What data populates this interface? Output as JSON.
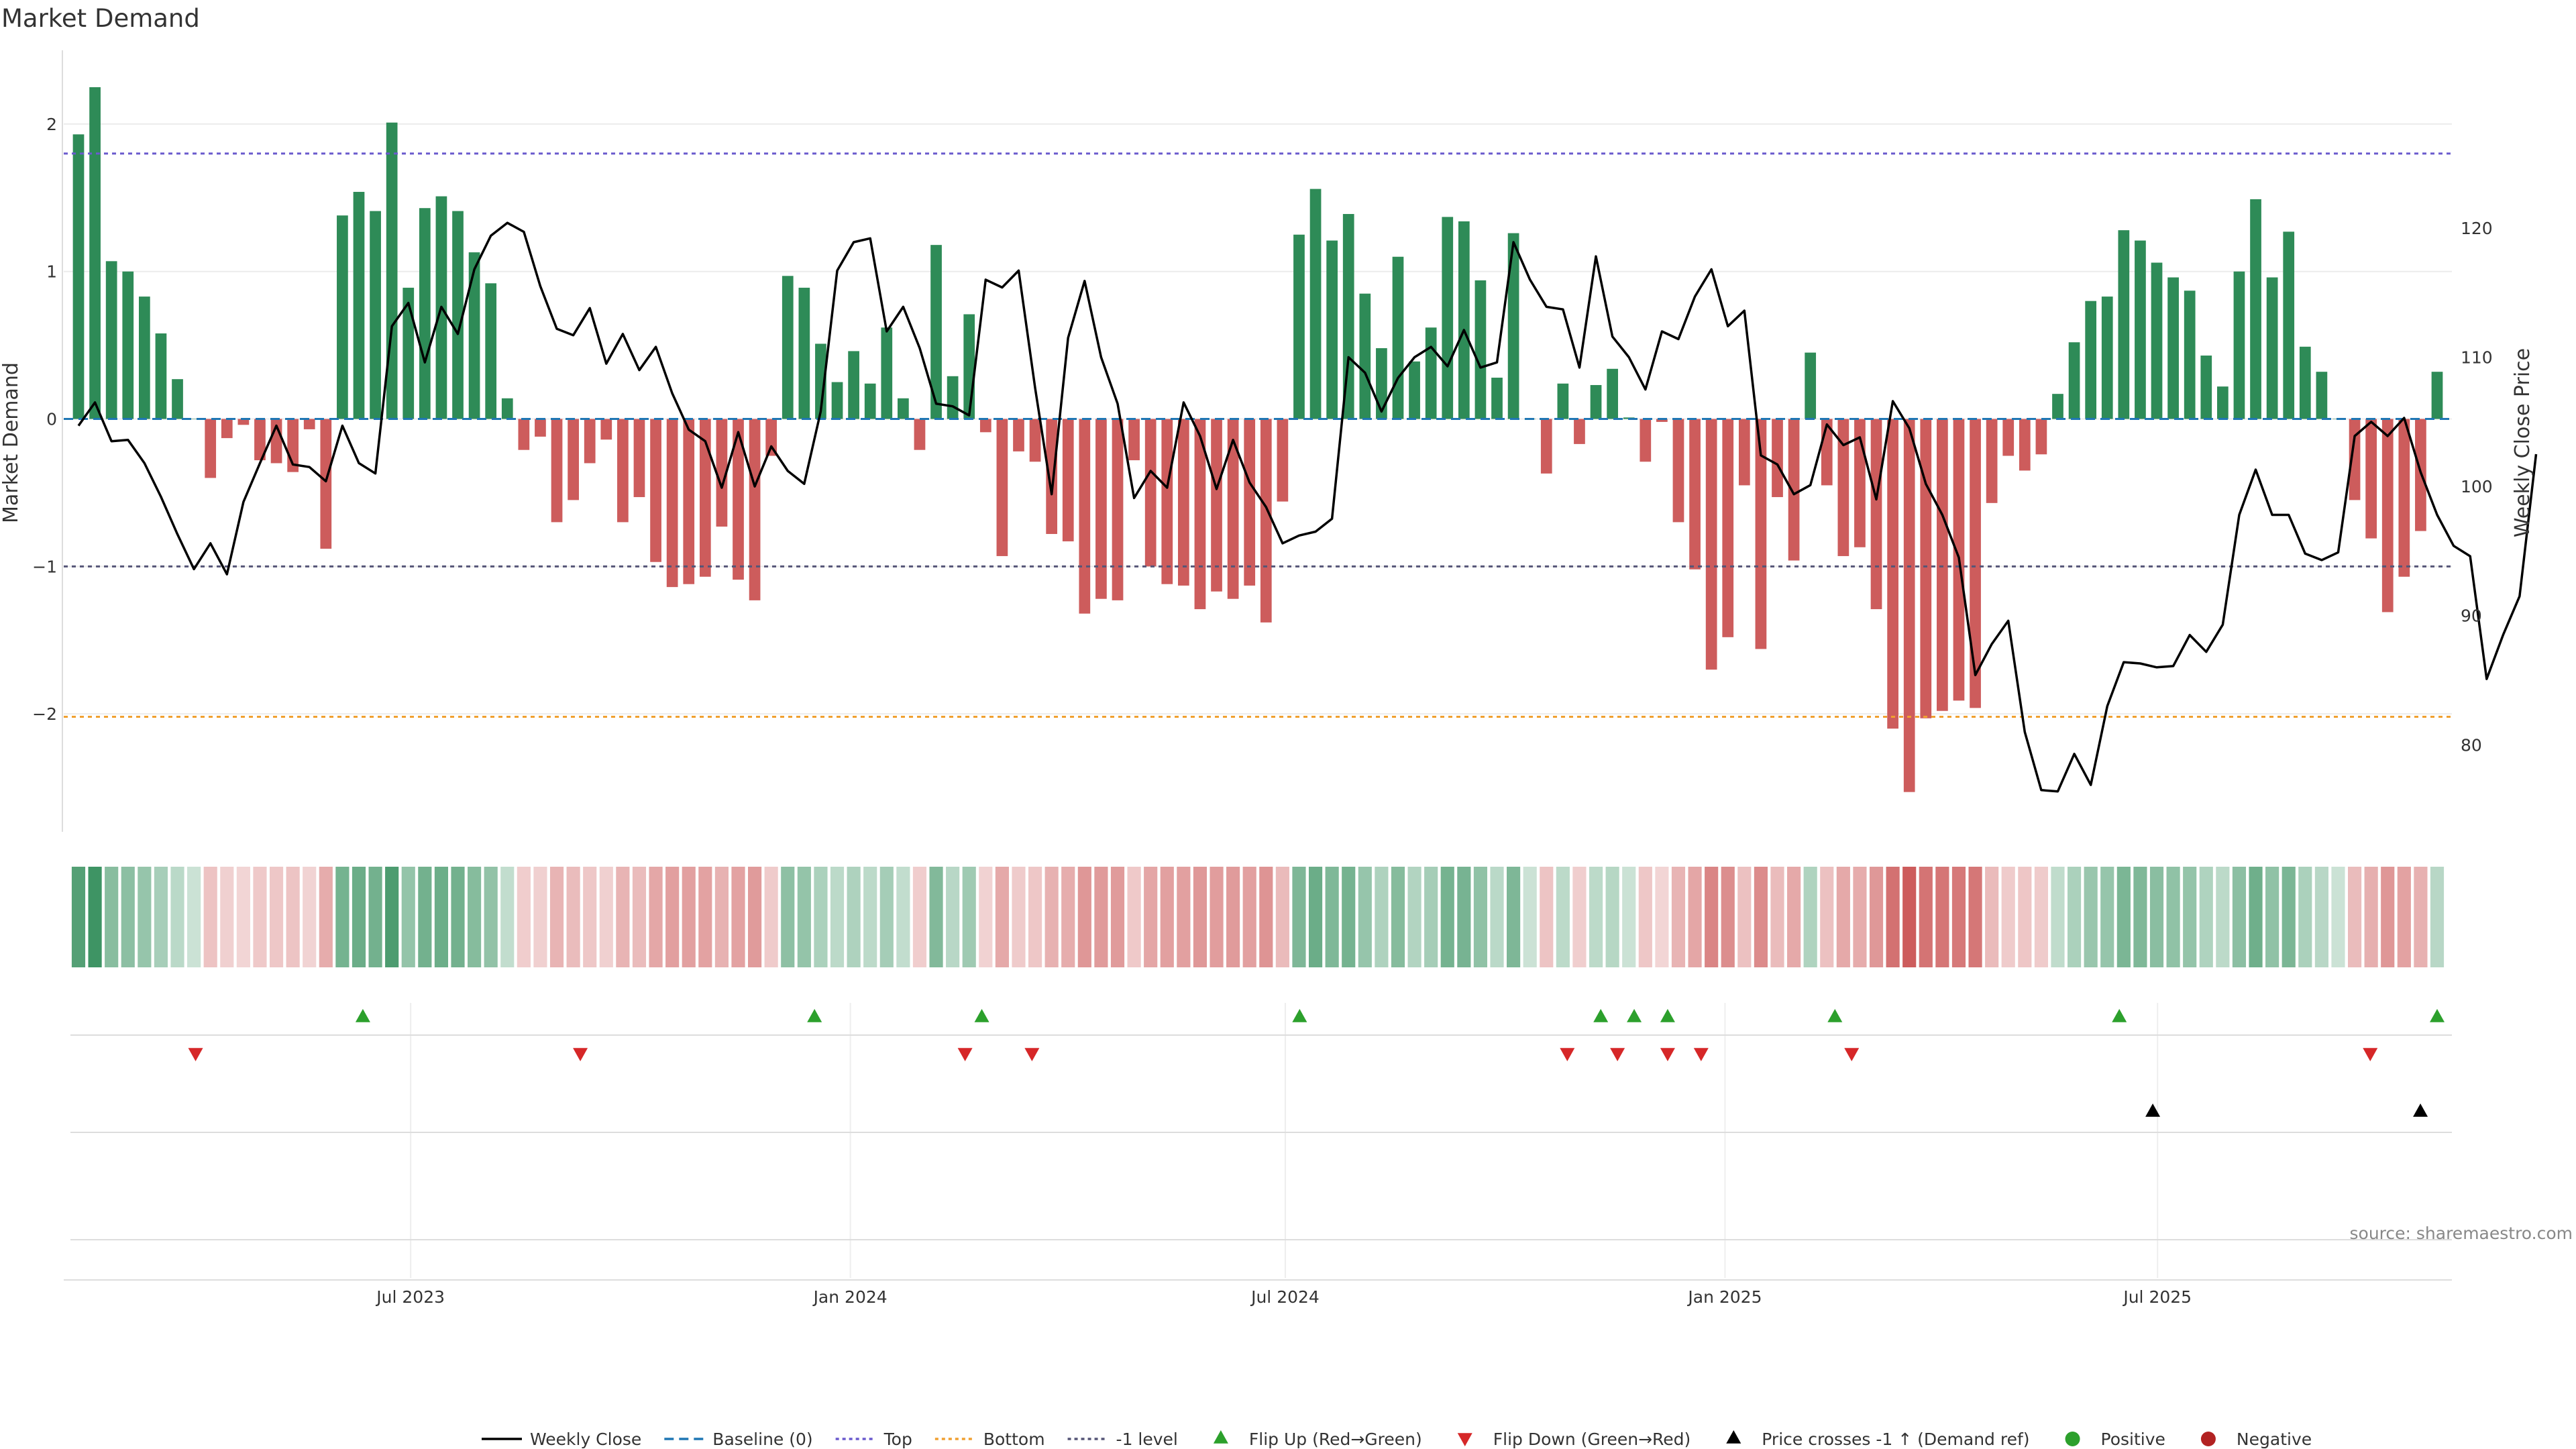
{
  "chart_data": {
    "type": "bar",
    "title": "Market Demand",
    "ylabel_left": "Market Demand",
    "ylabel_right": "Weekly Close Price",
    "source": "source: sharemaestro.com",
    "ylim_left": [
      -2.8,
      2.5
    ],
    "yticks_left": [
      -2,
      -1,
      0,
      1,
      2
    ],
    "ytick_labels_left": [
      "−2",
      "−1",
      "0",
      "1",
      "2"
    ],
    "ylim_right": [
      73.27,
      133.75
    ],
    "yticks_right": [
      80,
      90,
      100,
      110,
      120
    ],
    "ytick_labels_right": [
      "80",
      "90",
      "100",
      "110",
      "120"
    ],
    "x_start": "2023-02-12",
    "x_end": "2025-10-26",
    "xticks": [
      "2023-07-01",
      "2024-01-01",
      "2024-07-01",
      "2025-01-01",
      "2025-07-01"
    ],
    "xtick_labels": [
      "Jul 2023",
      "Jan 2024",
      "Jul 2024",
      "Jan 2025",
      "Jul 2025"
    ],
    "reference_lines": [
      {
        "name": "Top",
        "value": 1.8,
        "color": "#6a5acd"
      },
      {
        "name": "Bottom",
        "value": -2.02,
        "color": "#f0a030"
      },
      {
        "name": "-1 level",
        "value": -1.0,
        "color": "#555577"
      }
    ],
    "colors": {
      "positive": "#2e8b57",
      "negative": "#cd5c5c",
      "price": "#000000",
      "flip_up": "#2ca02c",
      "flip_down": "#d62728"
    },
    "series": [
      {
        "name": "Market Demand",
        "values": [
          1.93,
          2.25,
          1.07,
          1.0,
          0.83,
          0.58,
          0.27,
          0.0,
          -0.4,
          -0.13,
          -0.04,
          -0.28,
          -0.3,
          -0.36,
          -0.07,
          -0.88,
          1.38,
          1.54,
          1.41,
          2.01,
          0.89,
          1.43,
          1.51,
          1.41,
          1.13,
          0.92,
          0.14,
          -0.21,
          -0.12,
          -0.7,
          -0.55,
          -0.3,
          -0.14,
          -0.7,
          -0.53,
          -0.97,
          -1.14,
          -1.12,
          -1.07,
          -0.73,
          -1.09,
          -1.23,
          -0.25,
          0.97,
          0.89,
          0.51,
          0.25,
          0.46,
          0.24,
          0.62,
          0.14,
          -0.21,
          1.18,
          0.29,
          0.71,
          -0.09,
          -0.93,
          -0.22,
          -0.29,
          -0.78,
          -0.83,
          -1.32,
          -1.22,
          -1.23,
          -0.28,
          -1.0,
          -1.12,
          -1.13,
          -1.29,
          -1.17,
          -1.22,
          -1.13,
          -1.38,
          -0.56,
          1.25,
          1.56,
          1.21,
          1.39,
          0.85,
          0.48,
          1.1,
          0.39,
          0.62,
          1.37,
          1.34,
          0.94,
          0.28,
          1.26,
          0.0,
          -0.37,
          0.24,
          -0.17,
          0.23,
          0.34,
          0.01,
          -0.29,
          -0.02,
          -0.7,
          -1.02,
          -1.7,
          -1.48,
          -0.45,
          -1.56,
          -0.53,
          -0.96,
          0.45,
          -0.45,
          -0.93,
          -0.87,
          -1.29,
          -2.1,
          -2.53,
          -2.03,
          -1.98,
          -1.91,
          -1.96,
          -0.57,
          -0.25,
          -0.35,
          -0.24,
          0.17,
          0.52,
          0.8,
          0.83,
          1.28,
          1.21,
          1.06,
          0.96,
          0.87,
          0.43,
          0.22,
          1.0,
          1.49,
          0.96,
          1.27,
          0.49,
          0.32,
          0.0,
          -0.55,
          -0.81,
          -1.31,
          -1.07,
          -0.76,
          0.32
        ]
      },
      {
        "name": "Weekly Close",
        "values": [
          104.7,
          106.5,
          103.5,
          103.6,
          101.8,
          99.2,
          96.3,
          93.6,
          95.6,
          93.2,
          98.8,
          101.8,
          104.7,
          101.7,
          101.5,
          100.4,
          104.7,
          101.8,
          101.0,
          112.4,
          114.2,
          109.6,
          113.9,
          111.8,
          116.8,
          119.4,
          120.4,
          119.7,
          115.5,
          112.2,
          111.7,
          113.8,
          109.5,
          111.8,
          109.0,
          110.8,
          107.2,
          104.4,
          103.5,
          99.9,
          104.2,
          100.0,
          103.1,
          101.2,
          100.2,
          105.8,
          116.7,
          118.9,
          119.2,
          112.0,
          113.9,
          110.7,
          106.4,
          106.2,
          105.5,
          116.0,
          115.4,
          116.7,
          107.6,
          99.4,
          111.5,
          115.9,
          110.0,
          106.4,
          99.1,
          101.2,
          99.9,
          106.5,
          103.9,
          99.8,
          103.6,
          100.3,
          98.4,
          95.6,
          96.2,
          96.5,
          97.5,
          110.0,
          108.8,
          105.8,
          108.4,
          110.0,
          110.8,
          109.3,
          112.1,
          109.2,
          109.6,
          118.9,
          116.0,
          113.9,
          113.7,
          109.2,
          117.8,
          111.6,
          110.0,
          107.5,
          112.0,
          111.4,
          114.7,
          116.8,
          112.4,
          113.6,
          102.4,
          101.7,
          99.4,
          100.1,
          104.8,
          103.2,
          103.8,
          99.0,
          106.6,
          104.5,
          100.2,
          97.8,
          94.5,
          85.4,
          87.8,
          89.6,
          81.0,
          76.5,
          76.4,
          79.3,
          76.9,
          83.0,
          86.4,
          86.3,
          86.0,
          86.1,
          88.5,
          87.2,
          89.3,
          97.8,
          101.3,
          97.8,
          97.8,
          94.8,
          94.3,
          94.9,
          103.9,
          105.0,
          103.9,
          105.3,
          101.1,
          97.8,
          95.4,
          94.6,
          85.1,
          88.5,
          91.5,
          102.5
        ]
      }
    ],
    "markers": {
      "flip_up": [
        "2023-06-11",
        "2023-12-17",
        "2024-02-25",
        "2024-07-07",
        "2024-11-10",
        "2024-11-24",
        "2024-12-08",
        "2025-02-16",
        "2025-06-15",
        "2025-10-26"
      ],
      "flip_down": [
        "2023-04-02",
        "2023-09-10",
        "2024-02-18",
        "2024-03-17",
        "2024-10-27",
        "2024-11-17",
        "2024-12-08",
        "2024-12-22",
        "2025-02-23",
        "2025-09-28"
      ],
      "price_cross": [
        "2025-06-29",
        "2025-10-19"
      ]
    },
    "legend": {
      "position": "bottom",
      "items": [
        {
          "label": "Weekly Close",
          "kind": "line",
          "color": "#000000"
        },
        {
          "label": "Baseline (0)",
          "kind": "dash",
          "color": "#1f77b4"
        },
        {
          "label": "Top",
          "kind": "dot",
          "color": "#6a5acd"
        },
        {
          "label": "Bottom",
          "kind": "dot",
          "color": "#f0a030"
        },
        {
          "label": "-1 level",
          "kind": "dot",
          "color": "#555577"
        },
        {
          "label": "Flip Up (Red→Green)",
          "kind": "tri-up",
          "color": "#2ca02c"
        },
        {
          "label": "Flip Down (Green→Red)",
          "kind": "tri-down",
          "color": "#d62728"
        },
        {
          "label": "Price crosses -1 ↑ (Demand ref)",
          "kind": "tri-up",
          "color": "#000000"
        },
        {
          "label": "Positive",
          "kind": "circle",
          "color": "#2ca02c"
        },
        {
          "label": "Negative",
          "kind": "circle",
          "color": "#b22222"
        }
      ]
    }
  }
}
